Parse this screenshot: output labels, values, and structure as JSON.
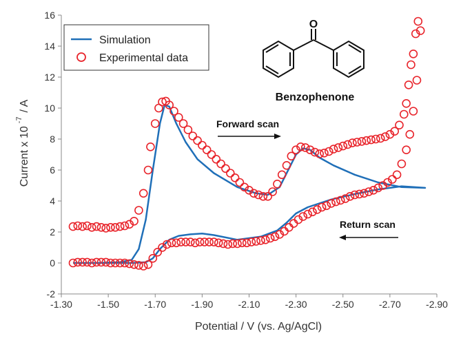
{
  "chart_data": {
    "type": "scatter",
    "xlabel": "Potential / V (vs. Ag/AgCl)",
    "ylabel_main": "Current x 10",
    "ylabel_exp": "-7",
    "ylabel_unit": "/ A",
    "xlim": [
      -1.3,
      -2.9
    ],
    "ylim": [
      -2,
      16
    ],
    "x_ticks": [
      -1.3,
      -1.5,
      -1.7,
      -1.9,
      -2.1,
      -2.3,
      -2.5,
      -2.7,
      -2.9
    ],
    "x_tick_labels": [
      "-1.30",
      "-1.50",
      "-1.70",
      "-1.90",
      "-2.10",
      "-2.30",
      "-2.50",
      "-2.70",
      "-2.90"
    ],
    "y_ticks": [
      -2,
      0,
      2,
      4,
      6,
      8,
      10,
      12,
      14,
      16
    ],
    "y_tick_labels": [
      "-2",
      "0",
      "2",
      "4",
      "6",
      "8",
      "10",
      "12",
      "14",
      "16"
    ],
    "legend_position": "top-left",
    "legend": [
      {
        "label": "Simulation",
        "marker": "line"
      },
      {
        "label": "Experimental data",
        "marker": "circle"
      }
    ],
    "annotations": {
      "forward": "Forward scan",
      "return": "Return scan",
      "molecule": "Benzophenone",
      "oxygen": "O"
    },
    "colors": {
      "simulation": "#1f6fb8",
      "experimental": "#e8232a",
      "axis": "#888888"
    },
    "series": [
      {
        "name": "Simulation",
        "kind": "line",
        "points": [
          [
            -1.35,
            0.0
          ],
          [
            -1.45,
            0.0
          ],
          [
            -1.55,
            0.05
          ],
          [
            -1.6,
            0.2
          ],
          [
            -1.63,
            0.9
          ],
          [
            -1.66,
            2.8
          ],
          [
            -1.69,
            6.0
          ],
          [
            -1.72,
            9.0
          ],
          [
            -1.74,
            10.2
          ],
          [
            -1.76,
            10.1
          ],
          [
            -1.79,
            9.0
          ],
          [
            -1.83,
            7.8
          ],
          [
            -1.88,
            6.7
          ],
          [
            -1.95,
            5.8
          ],
          [
            -2.05,
            4.9
          ],
          [
            -2.13,
            4.5
          ],
          [
            -2.18,
            4.4
          ],
          [
            -2.23,
            4.9
          ],
          [
            -2.27,
            6.1
          ],
          [
            -2.3,
            7.0
          ],
          [
            -2.33,
            7.4
          ],
          [
            -2.36,
            7.3
          ],
          [
            -2.4,
            6.8
          ],
          [
            -2.46,
            6.3
          ],
          [
            -2.55,
            5.7
          ],
          [
            -2.65,
            5.2
          ],
          [
            -2.75,
            4.9
          ],
          [
            -2.85,
            4.85
          ],
          [
            -2.75,
            4.95
          ],
          [
            -2.65,
            4.75
          ],
          [
            -2.55,
            4.45
          ],
          [
            -2.45,
            4.1
          ],
          [
            -2.35,
            3.6
          ],
          [
            -2.3,
            3.2
          ],
          [
            -2.26,
            2.6
          ],
          [
            -2.22,
            2.1
          ],
          [
            -2.15,
            1.7
          ],
          [
            -2.05,
            1.5
          ],
          [
            -1.95,
            1.8
          ],
          [
            -1.9,
            1.9
          ],
          [
            -1.85,
            1.85
          ],
          [
            -1.8,
            1.75
          ],
          [
            -1.76,
            1.5
          ],
          [
            -1.72,
            0.9
          ],
          [
            -1.69,
            0.3
          ],
          [
            -1.66,
            0.05
          ],
          [
            -1.6,
            0.0
          ],
          [
            -1.5,
            0.0
          ],
          [
            -1.35,
            0.0
          ]
        ]
      },
      {
        "name": "Experimental data",
        "kind": "scatter",
        "points": [
          [
            -1.35,
            2.35
          ],
          [
            -1.37,
            2.4
          ],
          [
            -1.39,
            2.35
          ],
          [
            -1.41,
            2.4
          ],
          [
            -1.43,
            2.3
          ],
          [
            -1.45,
            2.35
          ],
          [
            -1.47,
            2.3
          ],
          [
            -1.49,
            2.25
          ],
          [
            -1.51,
            2.3
          ],
          [
            -1.53,
            2.3
          ],
          [
            -1.55,
            2.35
          ],
          [
            -1.57,
            2.4
          ],
          [
            -1.59,
            2.5
          ],
          [
            -1.61,
            2.7
          ],
          [
            -1.63,
            3.4
          ],
          [
            -1.65,
            4.5
          ],
          [
            -1.67,
            6.0
          ],
          [
            -1.68,
            7.5
          ],
          [
            -1.7,
            9.0
          ],
          [
            -1.715,
            10.0
          ],
          [
            -1.73,
            10.4
          ],
          [
            -1.745,
            10.45
          ],
          [
            -1.76,
            10.2
          ],
          [
            -1.78,
            9.8
          ],
          [
            -1.8,
            9.4
          ],
          [
            -1.82,
            9.0
          ],
          [
            -1.84,
            8.6
          ],
          [
            -1.86,
            8.2
          ],
          [
            -1.88,
            7.9
          ],
          [
            -1.9,
            7.6
          ],
          [
            -1.92,
            7.3
          ],
          [
            -1.94,
            7.0
          ],
          [
            -1.96,
            6.7
          ],
          [
            -1.98,
            6.4
          ],
          [
            -2.0,
            6.1
          ],
          [
            -2.02,
            5.8
          ],
          [
            -2.04,
            5.5
          ],
          [
            -2.06,
            5.2
          ],
          [
            -2.08,
            4.9
          ],
          [
            -2.1,
            4.7
          ],
          [
            -2.12,
            4.5
          ],
          [
            -2.14,
            4.4
          ],
          [
            -2.16,
            4.3
          ],
          [
            -2.18,
            4.3
          ],
          [
            -2.2,
            4.6
          ],
          [
            -2.22,
            5.1
          ],
          [
            -2.24,
            5.7
          ],
          [
            -2.26,
            6.3
          ],
          [
            -2.28,
            6.9
          ],
          [
            -2.3,
            7.3
          ],
          [
            -2.32,
            7.5
          ],
          [
            -2.34,
            7.45
          ],
          [
            -2.36,
            7.3
          ],
          [
            -2.38,
            7.15
          ],
          [
            -2.4,
            7.05
          ],
          [
            -2.42,
            7.1
          ],
          [
            -2.44,
            7.2
          ],
          [
            -2.46,
            7.35
          ],
          [
            -2.48,
            7.45
          ],
          [
            -2.5,
            7.55
          ],
          [
            -2.52,
            7.65
          ],
          [
            -2.54,
            7.75
          ],
          [
            -2.56,
            7.8
          ],
          [
            -2.58,
            7.85
          ],
          [
            -2.6,
            7.9
          ],
          [
            -2.62,
            7.95
          ],
          [
            -2.64,
            8.0
          ],
          [
            -2.66,
            8.05
          ],
          [
            -2.68,
            8.15
          ],
          [
            -2.7,
            8.3
          ],
          [
            -2.72,
            8.5
          ],
          [
            -2.74,
            8.9
          ],
          [
            -2.76,
            9.6
          ],
          [
            -2.77,
            10.3
          ],
          [
            -2.78,
            11.5
          ],
          [
            -2.79,
            12.8
          ],
          [
            -2.8,
            13.5
          ],
          [
            -2.81,
            14.8
          ],
          [
            -2.82,
            15.6
          ],
          [
            -2.83,
            15.0
          ],
          [
            -2.815,
            11.8
          ],
          [
            -2.8,
            9.8
          ],
          [
            -2.785,
            8.3
          ],
          [
            -2.77,
            7.3
          ],
          [
            -2.75,
            6.4
          ],
          [
            -2.73,
            5.7
          ],
          [
            -2.71,
            5.4
          ],
          [
            -2.69,
            5.2
          ],
          [
            -2.67,
            5.0
          ],
          [
            -2.65,
            4.85
          ],
          [
            -2.63,
            4.7
          ],
          [
            -2.61,
            4.6
          ],
          [
            -2.59,
            4.5
          ],
          [
            -2.57,
            4.45
          ],
          [
            -2.55,
            4.4
          ],
          [
            -2.53,
            4.3
          ],
          [
            -2.51,
            4.15
          ],
          [
            -2.49,
            4.05
          ],
          [
            -2.47,
            3.95
          ],
          [
            -2.45,
            3.85
          ],
          [
            -2.43,
            3.7
          ],
          [
            -2.41,
            3.6
          ],
          [
            -2.39,
            3.45
          ],
          [
            -2.37,
            3.3
          ],
          [
            -2.35,
            3.15
          ],
          [
            -2.33,
            3.0
          ],
          [
            -2.31,
            2.8
          ],
          [
            -2.29,
            2.55
          ],
          [
            -2.27,
            2.3
          ],
          [
            -2.25,
            2.05
          ],
          [
            -2.23,
            1.85
          ],
          [
            -2.21,
            1.7
          ],
          [
            -2.19,
            1.6
          ],
          [
            -2.17,
            1.5
          ],
          [
            -2.15,
            1.45
          ],
          [
            -2.13,
            1.4
          ],
          [
            -2.11,
            1.35
          ],
          [
            -2.09,
            1.3
          ],
          [
            -2.07,
            1.3
          ],
          [
            -2.05,
            1.25
          ],
          [
            -2.03,
            1.25
          ],
          [
            -2.01,
            1.2
          ],
          [
            -1.99,
            1.25
          ],
          [
            -1.97,
            1.3
          ],
          [
            -1.95,
            1.35
          ],
          [
            -1.93,
            1.35
          ],
          [
            -1.91,
            1.35
          ],
          [
            -1.89,
            1.35
          ],
          [
            -1.87,
            1.3
          ],
          [
            -1.85,
            1.35
          ],
          [
            -1.83,
            1.35
          ],
          [
            -1.81,
            1.35
          ],
          [
            -1.79,
            1.3
          ],
          [
            -1.77,
            1.3
          ],
          [
            -1.75,
            1.2
          ],
          [
            -1.73,
            1.0
          ],
          [
            -1.71,
            0.7
          ],
          [
            -1.69,
            0.3
          ],
          [
            -1.67,
            -0.1
          ],
          [
            -1.65,
            -0.2
          ],
          [
            -1.63,
            -0.15
          ],
          [
            -1.61,
            -0.1
          ],
          [
            -1.59,
            -0.05
          ],
          [
            -1.57,
            0.0
          ],
          [
            -1.55,
            0.0
          ],
          [
            -1.53,
            0.0
          ],
          [
            -1.51,
            0.0
          ],
          [
            -1.49,
            0.05
          ],
          [
            -1.47,
            0.05
          ],
          [
            -1.45,
            0.05
          ],
          [
            -1.43,
            0.0
          ],
          [
            -1.41,
            0.05
          ],
          [
            -1.39,
            0.05
          ],
          [
            -1.37,
            0.05
          ],
          [
            -1.35,
            0.0
          ]
        ]
      }
    ]
  }
}
